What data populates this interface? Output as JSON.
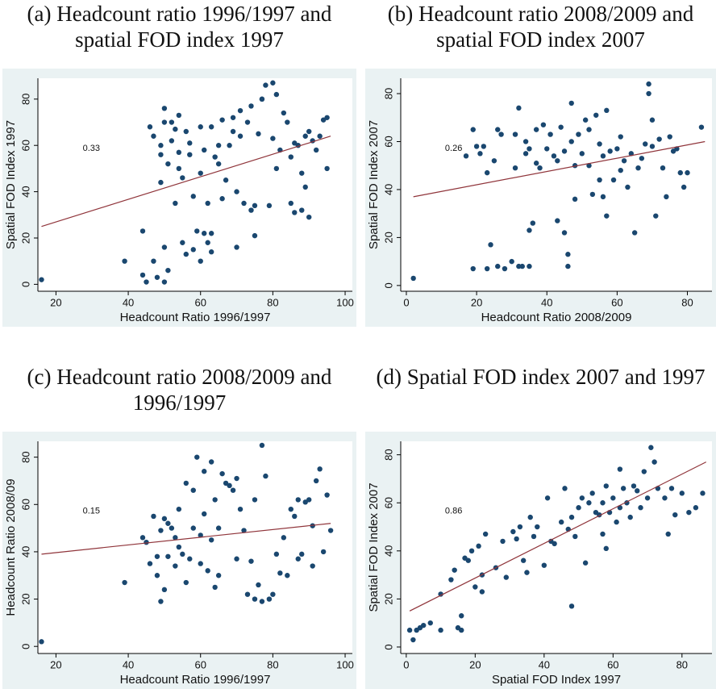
{
  "chart_data": [
    {
      "type": "scatter",
      "title": [
        "(a) Headcount ratio 1996/1997 and",
        "spatial FOD index 1997"
      ],
      "x_label": "Headcount Ratio 1996/1997",
      "y_label": "Spatial FOD Index 1997",
      "annotation": "0.33",
      "xlim": [
        15,
        102
      ],
      "ylim": [
        -3,
        89
      ],
      "xticks": [
        20,
        40,
        60,
        80,
        100
      ],
      "yticks": [
        0,
        20,
        40,
        60,
        80
      ],
      "series": [
        {
          "type": "scatter",
          "color": "#1a476f",
          "x": [
            16,
            39,
            44,
            44,
            45,
            46,
            47,
            47,
            48,
            49,
            49,
            49,
            50,
            50,
            50,
            50,
            51,
            51,
            52,
            52,
            53,
            53,
            54,
            54,
            54,
            55,
            55,
            56,
            56,
            57,
            57,
            58,
            58,
            59,
            60,
            60,
            60,
            61,
            61,
            62,
            62,
            63,
            63,
            63,
            64,
            65,
            65,
            66,
            66,
            67,
            68,
            69,
            69,
            70,
            70,
            71,
            71,
            72,
            73,
            74,
            74,
            75,
            75,
            76,
            77,
            77,
            78,
            79,
            80,
            80,
            81,
            81,
            82,
            83,
            84,
            85,
            85,
            86,
            86,
            87,
            88,
            88,
            89,
            89,
            90,
            90,
            91,
            92,
            93,
            94,
            95,
            95
          ],
          "values": [
            2,
            10,
            4,
            23,
            1,
            68,
            64,
            10,
            3,
            56,
            60,
            44,
            76,
            70,
            16,
            1,
            6,
            52,
            62,
            70,
            35,
            67,
            73,
            57,
            50,
            18,
            46,
            66,
            13,
            61,
            56,
            15,
            38,
            23,
            68,
            48,
            10,
            22,
            58,
            18,
            35,
            68,
            14,
            22,
            55,
            60,
            52,
            37,
            71,
            45,
            60,
            66,
            72,
            16,
            40,
            64,
            75,
            35,
            70,
            77,
            32,
            21,
            34,
            65,
            80,
            80,
            86,
            34,
            87,
            63,
            82,
            50,
            58,
            74,
            70,
            55,
            35,
            31,
            61,
            60,
            48,
            32,
            42,
            64,
            29,
            66,
            62,
            58,
            64,
            71,
            50,
            72
          ]
        },
        {
          "type": "line",
          "color": "#90353b",
          "x": [
            16,
            96
          ],
          "values": [
            25,
            64
          ]
        }
      ]
    },
    {
      "type": "scatter",
      "title": [
        "(b) Headcount ratio 2008/2009 and",
        "spatial FOD index 2007"
      ],
      "x_label": "Headcount Ratio 2008/2009",
      "y_label": "Spatial FOD Index 2007",
      "annotation": "0.26",
      "xlim": [
        -1.6,
        87
      ],
      "ylim": [
        -2.4,
        86.4
      ],
      "xticks": [
        0,
        20,
        40,
        60,
        80
      ],
      "yticks": [
        0,
        20,
        40,
        60,
        80
      ],
      "series": [
        {
          "type": "scatter",
          "color": "#1a476f",
          "x": [
            2,
            17,
            19,
            19,
            20,
            21,
            22,
            23,
            23,
            24,
            25,
            26,
            26,
            27,
            28,
            30,
            31,
            31,
            32,
            32,
            33,
            34,
            34,
            35,
            35,
            35,
            36,
            37,
            37,
            38,
            39,
            40,
            41,
            42,
            43,
            43,
            44,
            45,
            45,
            46,
            46,
            47,
            47,
            48,
            48,
            49,
            50,
            51,
            52,
            52,
            53,
            54,
            55,
            55,
            56,
            56,
            57,
            57,
            58,
            59,
            60,
            61,
            61,
            62,
            63,
            64,
            65,
            66,
            67,
            68,
            69,
            69,
            70,
            70,
            71,
            72,
            73,
            74,
            75,
            76,
            77,
            78,
            79,
            80,
            84
          ],
          "values": [
            3,
            54,
            65,
            7,
            58,
            55,
            58,
            47,
            7,
            17,
            52,
            65,
            8,
            63,
            7,
            10,
            63,
            49,
            74,
            8,
            8,
            60,
            55,
            57,
            23,
            8,
            26,
            51,
            65,
            49,
            67,
            57,
            63,
            54,
            27,
            52,
            66,
            56,
            22,
            13,
            8,
            76,
            60,
            36,
            50,
            63,
            55,
            69,
            50,
            65,
            38,
            71,
            59,
            44,
            37,
            54,
            29,
            73,
            56,
            44,
            57,
            48,
            62,
            52,
            41,
            55,
            22,
            49,
            53,
            59,
            84,
            80,
            58,
            69,
            29,
            61,
            49,
            37,
            62,
            56,
            57,
            47,
            41,
            47,
            66
          ]
        },
        {
          "type": "line",
          "color": "#90353b",
          "x": [
            2,
            85
          ],
          "values": [
            37,
            60
          ]
        }
      ]
    },
    {
      "type": "scatter",
      "title": [
        "(c) Headcount ratio 2008/2009 and",
        "1996/1997"
      ],
      "x_label": "Headcount Ratio 1996/1997",
      "y_label": "Headcount Ratio 2008/09",
      "annotation": "0.15",
      "xlim": [
        15,
        102
      ],
      "ylim": [
        -3,
        86.7
      ],
      "xticks": [
        20,
        40,
        60,
        80,
        100
      ],
      "yticks": [
        0,
        20,
        40,
        60,
        80
      ],
      "series": [
        {
          "type": "scatter",
          "color": "#1a476f",
          "x": [
            16,
            39,
            44,
            45,
            46,
            47,
            48,
            48,
            49,
            49,
            50,
            50,
            51,
            51,
            52,
            53,
            53,
            54,
            54,
            55,
            56,
            56,
            57,
            58,
            58,
            59,
            60,
            60,
            61,
            61,
            62,
            63,
            63,
            64,
            64,
            65,
            65,
            66,
            67,
            68,
            69,
            70,
            70,
            71,
            72,
            73,
            74,
            75,
            75,
            76,
            77,
            77,
            78,
            79,
            80,
            81,
            82,
            83,
            84,
            85,
            86,
            87,
            87,
            88,
            89,
            90,
            91,
            91,
            92,
            93,
            94,
            95,
            96
          ],
          "values": [
            2,
            27,
            46,
            44,
            35,
            55,
            38,
            30,
            19,
            49,
            54,
            24,
            52,
            38,
            50,
            46,
            34,
            58,
            42,
            39,
            69,
            27,
            37,
            66,
            50,
            80,
            47,
            35,
            56,
            74,
            32,
            78,
            45,
            25,
            62,
            30,
            50,
            73,
            69,
            68,
            66,
            71,
            37,
            58,
            49,
            22,
            36,
            20,
            62,
            26,
            19,
            85,
            72,
            20,
            22,
            39,
            31,
            46,
            30,
            58,
            55,
            62,
            37,
            39,
            61,
            62,
            51,
            34,
            70,
            75,
            40,
            64,
            49
          ]
        },
        {
          "type": "line",
          "color": "#90353b",
          "x": [
            16,
            96
          ],
          "values": [
            39,
            52
          ]
        }
      ]
    },
    {
      "type": "scatter",
      "title": [
        "(d) Spatial FOD index 2007 and 1997"
      ],
      "x_label": "Spatial FOD Index 1997",
      "y_label": "Spatial FOD Index 2007",
      "annotation": "0.86",
      "xlim": [
        -1.6,
        88.7
      ],
      "ylim": [
        -2.7,
        85.6
      ],
      "xticks": [
        0,
        20,
        40,
        60,
        80
      ],
      "yticks": [
        0,
        20,
        40,
        60,
        80
      ],
      "series": [
        {
          "type": "scatter",
          "color": "#1a476f",
          "x": [
            1,
            2,
            3,
            4,
            5,
            7,
            10,
            10,
            13,
            14,
            15,
            16,
            16,
            17,
            18,
            19,
            20,
            21,
            22,
            22,
            23,
            26,
            28,
            29,
            31,
            32,
            33,
            34,
            35,
            36,
            37,
            38,
            40,
            41,
            42,
            43,
            45,
            46,
            47,
            48,
            48,
            49,
            50,
            51,
            52,
            53,
            54,
            55,
            56,
            57,
            57,
            58,
            58,
            59,
            60,
            61,
            62,
            62,
            63,
            64,
            65,
            66,
            67,
            68,
            69,
            70,
            71,
            72,
            73,
            75,
            76,
            77,
            78,
            80,
            82,
            84,
            86
          ],
          "values": [
            7,
            3,
            7,
            8,
            9,
            10,
            7,
            22,
            28,
            32,
            8,
            13,
            7,
            37,
            36,
            40,
            25,
            42,
            23,
            30,
            47,
            33,
            44,
            29,
            48,
            45,
            50,
            36,
            31,
            54,
            46,
            50,
            34,
            62,
            44,
            43,
            52,
            66,
            49,
            17,
            54,
            46,
            58,
            62,
            35,
            60,
            64,
            56,
            55,
            47,
            60,
            41,
            67,
            56,
            62,
            52,
            74,
            58,
            66,
            60,
            54,
            67,
            65,
            58,
            73,
            62,
            83,
            77,
            66,
            62,
            47,
            66,
            55,
            64,
            56,
            58,
            64
          ]
        },
        {
          "type": "line",
          "color": "#90353b",
          "x": [
            1,
            87
          ],
          "values": [
            15,
            77
          ]
        }
      ]
    }
  ]
}
